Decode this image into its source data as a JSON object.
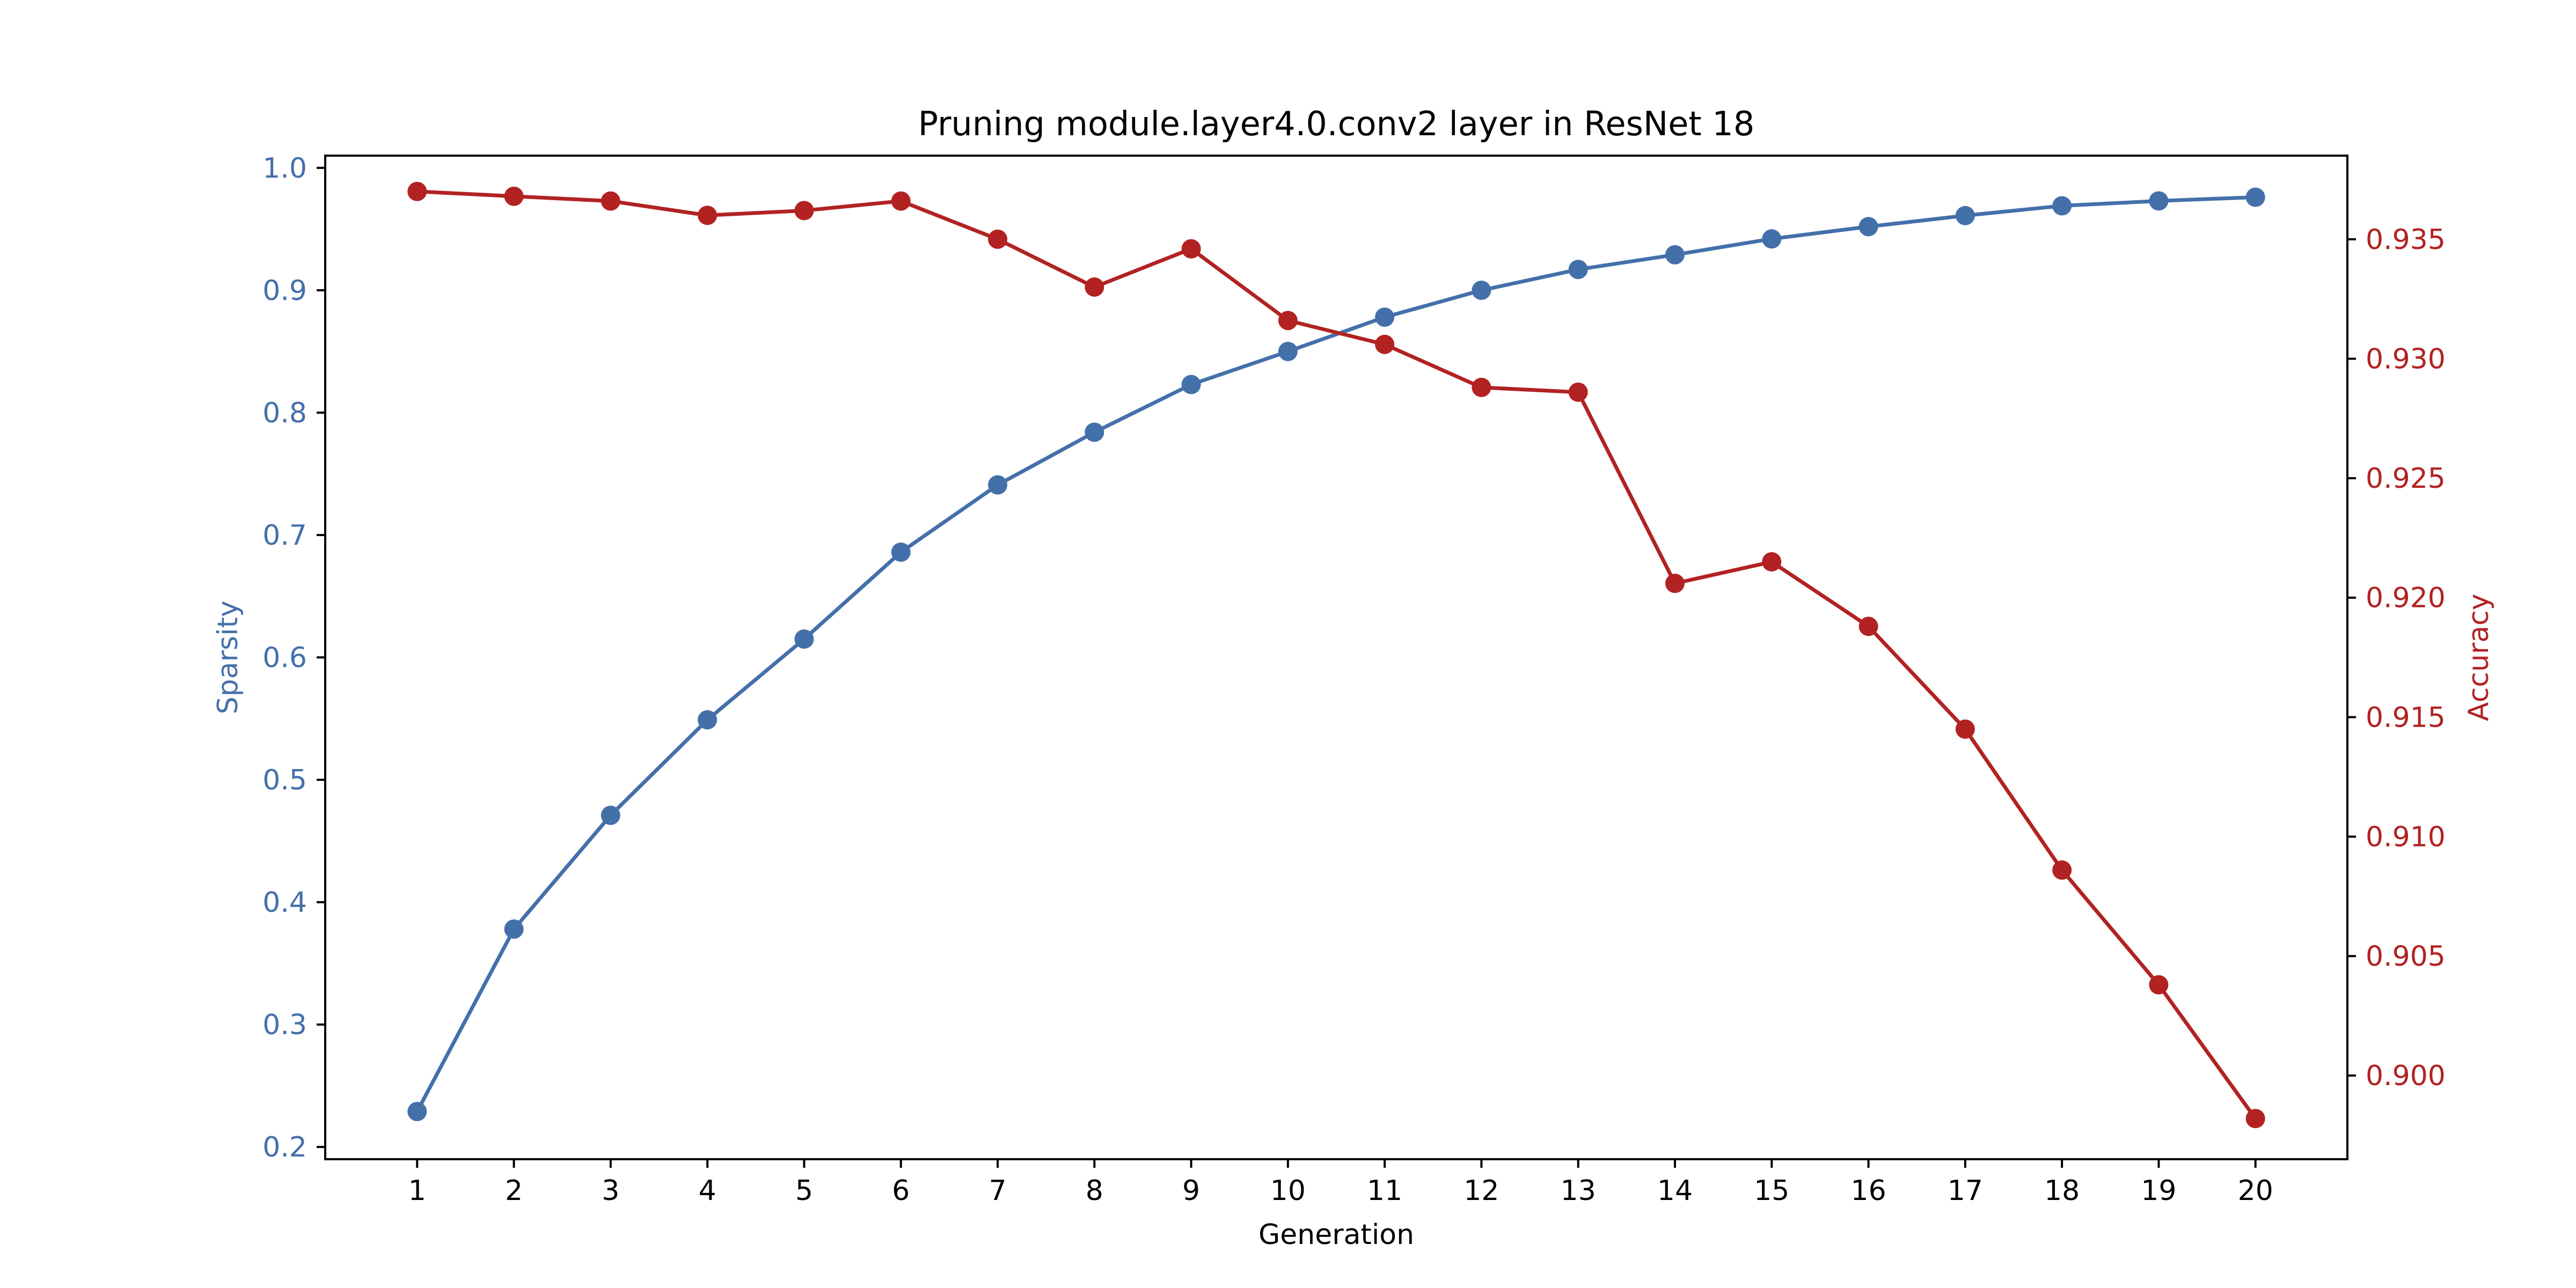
{
  "chart_data": {
    "type": "line",
    "title": "Pruning module.layer4.0.conv2 layer in ResNet 18",
    "xlabel": "Generation",
    "ylabel_left": "Sparsity",
    "ylabel_right": "Accuracy",
    "x": [
      1,
      2,
      3,
      4,
      5,
      6,
      7,
      8,
      9,
      10,
      11,
      12,
      13,
      14,
      15,
      16,
      17,
      18,
      19,
      20
    ],
    "x_ticks": [
      "1",
      "2",
      "3",
      "4",
      "5",
      "6",
      "7",
      "8",
      "9",
      "10",
      "11",
      "12",
      "13",
      "14",
      "15",
      "16",
      "17",
      "18",
      "19",
      "20"
    ],
    "ylim_left": [
      0.19,
      1.01
    ],
    "ylim_right": [
      0.8965,
      0.9385
    ],
    "yticks_left": [
      "0.2",
      "0.3",
      "0.4",
      "0.5",
      "0.6",
      "0.7",
      "0.8",
      "0.9",
      "1.0"
    ],
    "yticks_right": [
      "0.900",
      "0.905",
      "0.910",
      "0.915",
      "0.920",
      "0.925",
      "0.930",
      "0.935"
    ],
    "grid": false,
    "legend": "none",
    "series": [
      {
        "axis": "left",
        "color": "#4470aa",
        "marker": "circle",
        "values": [
          0.229,
          0.378,
          0.471,
          0.549,
          0.615,
          0.686,
          0.741,
          0.784,
          0.823,
          0.85,
          0.878,
          0.9,
          0.917,
          0.929,
          0.942,
          0.952,
          0.961,
          0.969,
          0.973,
          0.976
        ]
      },
      {
        "axis": "right",
        "color": "#b22222",
        "marker": "circle",
        "values": [
          0.937,
          0.9368,
          0.9366,
          0.936,
          0.9362,
          0.9366,
          0.935,
          0.933,
          0.9346,
          0.9316,
          0.9306,
          0.9288,
          0.9286,
          0.9206,
          0.9215,
          0.9188,
          0.9145,
          0.9086,
          0.9038,
          0.8982
        ]
      }
    ]
  }
}
